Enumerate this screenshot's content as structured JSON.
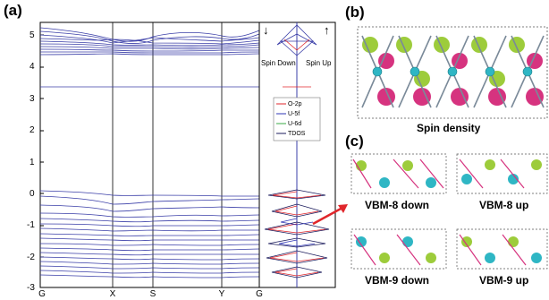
{
  "labels": {
    "a": "(a)",
    "b": "(b)",
    "c": "(c)"
  },
  "band": {
    "y_ticks": [
      "5",
      "4",
      "3",
      "2",
      "1",
      "0",
      "-1",
      "-2",
      "-3"
    ],
    "k_ticks": [
      "G",
      "X",
      "S",
      "Y",
      "G"
    ],
    "ylim": [
      -3,
      5.5
    ]
  },
  "dos": {
    "spin_down": "Spin Down",
    "spin_up": "Spin Up",
    "arrow_down": "↓",
    "arrow_up": "↑",
    "legend": [
      {
        "label": "O-2p",
        "color": "#e0262b"
      },
      {
        "label": "U-5f",
        "color": "#2f35b5"
      },
      {
        "label": "U-6d",
        "color": "#39a845"
      },
      {
        "label": "TDOS",
        "color": "#1b1b5c"
      }
    ]
  },
  "captions": {
    "spin_density": "Spin density",
    "vbm8_down": "VBM-8 down",
    "vbm8_up": "VBM-8 up",
    "vbm9_down": "VBM-9 down",
    "vbm9_up": "VBM-9 up"
  },
  "colors": {
    "band": "#3b3fa8",
    "atom_green": "#9dcc3b",
    "atom_magenta": "#d6337f",
    "atom_cyan": "#2fb6c4",
    "arrow": "#e0262b"
  }
}
